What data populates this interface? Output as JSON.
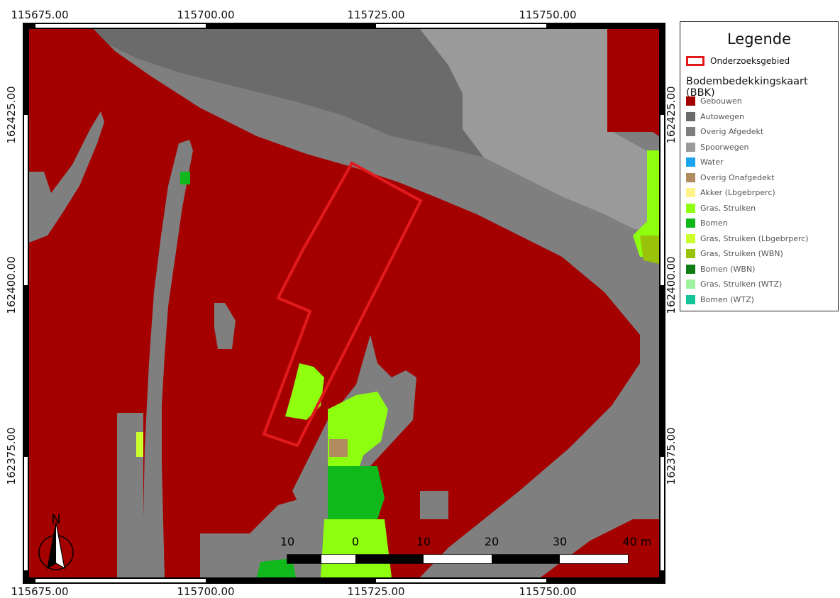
{
  "coords": {
    "top": [
      "115675.00",
      "115700.00",
      "115725.00",
      "115750.00"
    ],
    "bottom": [
      "115675.00",
      "115700.00",
      "115725.00",
      "115750.00"
    ],
    "left": [
      "162425.00",
      "162400.00",
      "162375.00"
    ],
    "right": [
      "162425.00",
      "162400.00",
      "162375.00"
    ]
  },
  "north_arrow": {
    "label": "N"
  },
  "scalebar": {
    "labels": [
      "10",
      "0",
      "10",
      "20",
      "30",
      "40 m"
    ]
  },
  "legend": {
    "title": "Legende",
    "study_area": {
      "label": "Onderzoeksgebied",
      "color": "#e31a1c"
    },
    "subtitle": "Bodembedekkingskaart (BBK)",
    "items": [
      {
        "label": "Gebouwen",
        "color": "#a50000"
      },
      {
        "label": "Autowegen",
        "color": "#6b6b6b"
      },
      {
        "label": "Overig Afgedekt",
        "color": "#7f7f7f"
      },
      {
        "label": "Spoorwegen",
        "color": "#9a9a9a"
      },
      {
        "label": "Water",
        "color": "#1aa3ef"
      },
      {
        "label": "Overig Onafgedekt",
        "color": "#b08c60"
      },
      {
        "label": "Akker (Lbgebrperc)",
        "color": "#fff48a"
      },
      {
        "label": "Gras, Struiken",
        "color": "#8fff10"
      },
      {
        "label": "Bomen",
        "color": "#10b81c"
      },
      {
        "label": "Gras, Struiken (Lbgebrperc)",
        "color": "#ccff2e"
      },
      {
        "label": "Gras, Struiken (WBN)",
        "color": "#99c20a"
      },
      {
        "label": "Bomen (WBN)",
        "color": "#0e7d15"
      },
      {
        "label": "Gras, Struiken (WTZ)",
        "color": "#9ef2a0"
      },
      {
        "label": "Bomen (WTZ)",
        "color": "#15c496"
      }
    ]
  },
  "colors": {
    "buildings": "#a50000",
    "roads": "#6b6b6b",
    "covered": "#7f7f7f",
    "rail": "#9a9a9a",
    "grass": "#8fff10",
    "trees": "#10b81c",
    "unpaved": "#b08c60",
    "grass_lbg": "#ccff2e",
    "grass_wbn": "#99c20a",
    "study_area": "#e31a1c"
  }
}
